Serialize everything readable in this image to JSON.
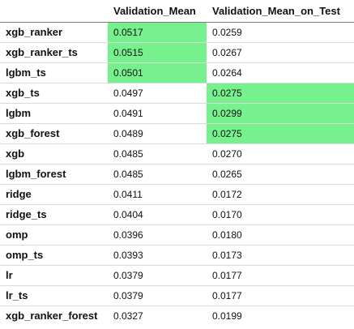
{
  "table": {
    "corner": "",
    "columns": [
      "Validation_Mean",
      "Validation_Mean_on_Test"
    ],
    "highlight_color": "#77f08e",
    "rows": [
      {
        "index": "xgb_ranker",
        "values": [
          "0.0517",
          "0.0259"
        ],
        "highlight": [
          true,
          false
        ]
      },
      {
        "index": "xgb_ranker_ts",
        "values": [
          "0.0515",
          "0.0267"
        ],
        "highlight": [
          true,
          false
        ]
      },
      {
        "index": "lgbm_ts",
        "values": [
          "0.0501",
          "0.0264"
        ],
        "highlight": [
          true,
          false
        ]
      },
      {
        "index": "xgb_ts",
        "values": [
          "0.0497",
          "0.0275"
        ],
        "highlight": [
          false,
          true
        ]
      },
      {
        "index": "lgbm",
        "values": [
          "0.0491",
          "0.0299"
        ],
        "highlight": [
          false,
          true
        ]
      },
      {
        "index": "xgb_forest",
        "values": [
          "0.0489",
          "0.0275"
        ],
        "highlight": [
          false,
          true
        ]
      },
      {
        "index": "xgb",
        "values": [
          "0.0485",
          "0.0270"
        ],
        "highlight": [
          false,
          false
        ]
      },
      {
        "index": "lgbm_forest",
        "values": [
          "0.0485",
          "0.0265"
        ],
        "highlight": [
          false,
          false
        ]
      },
      {
        "index": "ridge",
        "values": [
          "0.0411",
          "0.0172"
        ],
        "highlight": [
          false,
          false
        ]
      },
      {
        "index": "ridge_ts",
        "values": [
          "0.0404",
          "0.0170"
        ],
        "highlight": [
          false,
          false
        ]
      },
      {
        "index": "omp",
        "values": [
          "0.0396",
          "0.0180"
        ],
        "highlight": [
          false,
          false
        ]
      },
      {
        "index": "omp_ts",
        "values": [
          "0.0393",
          "0.0173"
        ],
        "highlight": [
          false,
          false
        ]
      },
      {
        "index": "lr",
        "values": [
          "0.0379",
          "0.0177"
        ],
        "highlight": [
          false,
          false
        ]
      },
      {
        "index": "lr_ts",
        "values": [
          "0.0379",
          "0.0177"
        ],
        "highlight": [
          false,
          false
        ]
      },
      {
        "index": "xgb_ranker_forest",
        "values": [
          "0.0327",
          "0.0199"
        ],
        "highlight": [
          false,
          false
        ]
      }
    ]
  }
}
